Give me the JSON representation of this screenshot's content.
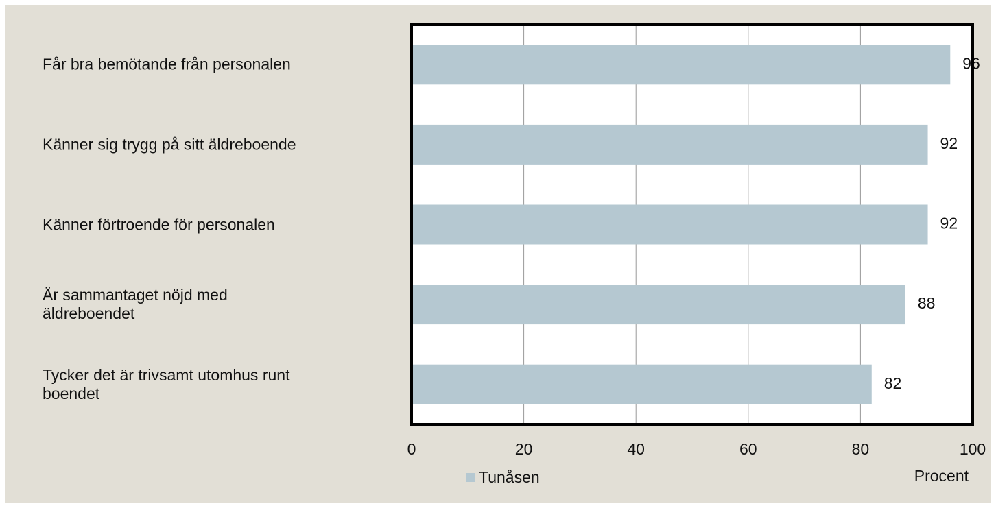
{
  "chart_data": {
    "type": "bar",
    "orientation": "horizontal",
    "categories": [
      "Får bra bemötande från personalen",
      "Känner sig trygg på sitt äldreboende",
      "Känner förtroende för personalen",
      "Är sammantaget nöjd med äldreboendet",
      "Tycker det är trivsamt utomhus runt boendet"
    ],
    "series": [
      {
        "name": "Tunåsen",
        "color": "#b5c8d1",
        "values": [
          96,
          92,
          92,
          88,
          82
        ]
      }
    ],
    "xlim": [
      0,
      100
    ],
    "xticks": [
      0,
      20,
      40,
      60,
      80,
      100
    ],
    "x_label": "Procent",
    "grid": true,
    "legend": "bottom"
  }
}
